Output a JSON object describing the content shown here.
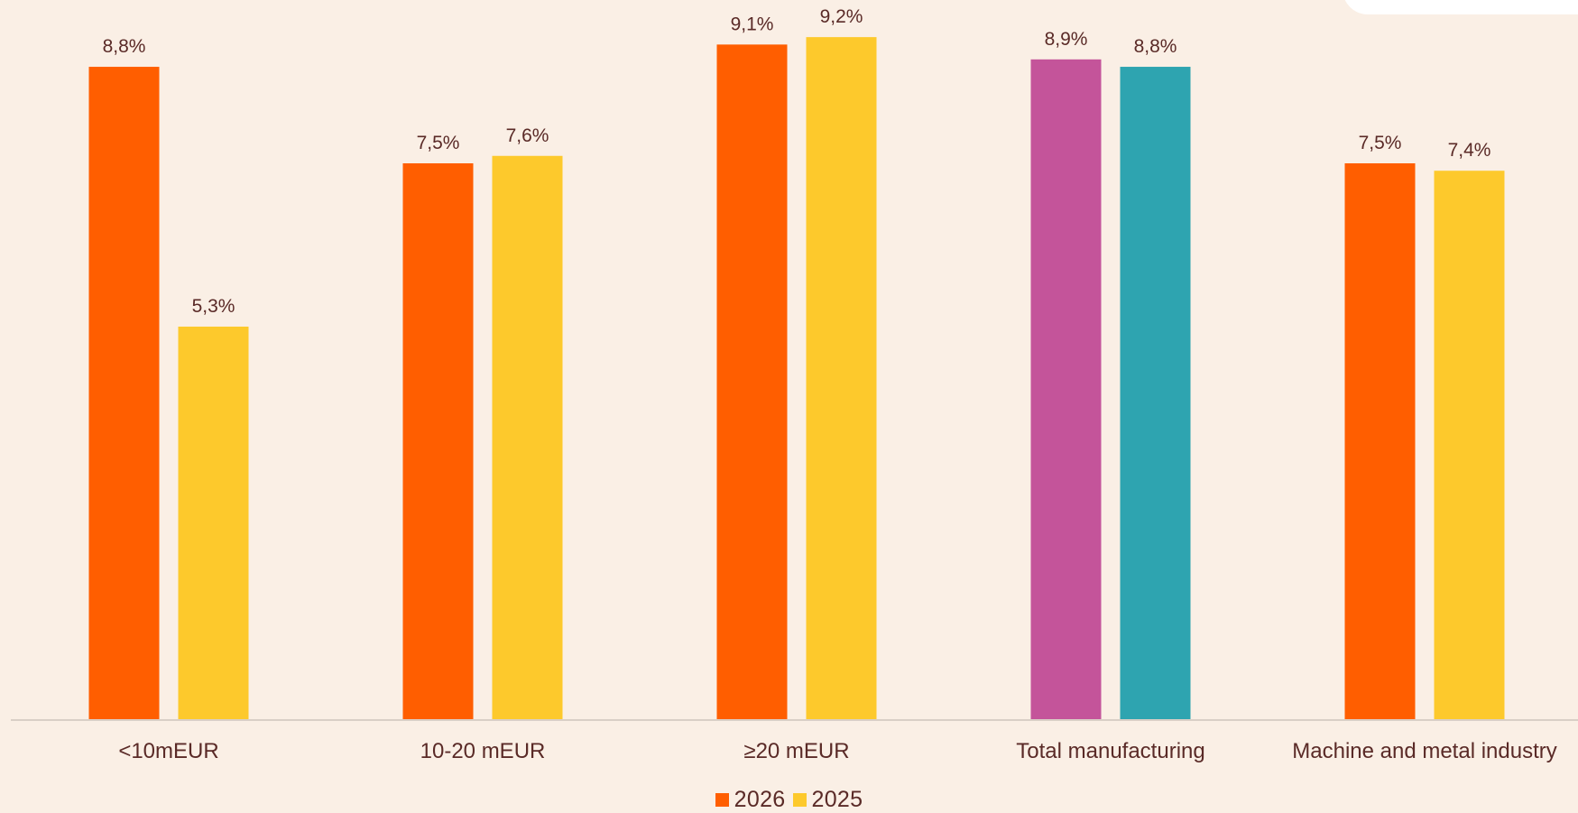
{
  "chart_data": {
    "type": "bar",
    "categories": [
      "<10mEUR",
      "10-20 mEUR",
      "≥20 mEUR",
      "Total manufacturing",
      "Machine and metal industry"
    ],
    "series": [
      {
        "name": "2026",
        "values": [
          8.8,
          7.5,
          9.1,
          8.9,
          7.5
        ],
        "labels": [
          "8,8%",
          "7,5%",
          "9,1%",
          "8,9%",
          "7,5%"
        ]
      },
      {
        "name": "2025",
        "values": [
          5.3,
          7.6,
          9.2,
          8.8,
          7.4
        ],
        "labels": [
          "5,3%",
          "7,6%",
          "9,2%",
          "8,8%",
          "7,4%"
        ]
      }
    ],
    "series_colors": [
      "#FF5E00",
      "#FDC92C"
    ],
    "highlight_category_index": 3,
    "highlight_colors": [
      "#C4549A",
      "#2EA4B0"
    ],
    "ylim": [
      0,
      9.7
    ],
    "grid": false,
    "legend_position": "bottom-center",
    "axis_color": "#D9CFC6",
    "text_color": "#5A2A27"
  },
  "legend": {
    "items": [
      {
        "label": "2026",
        "color": "#FF5E00"
      },
      {
        "label": "2025",
        "color": "#FDC92C"
      }
    ]
  }
}
